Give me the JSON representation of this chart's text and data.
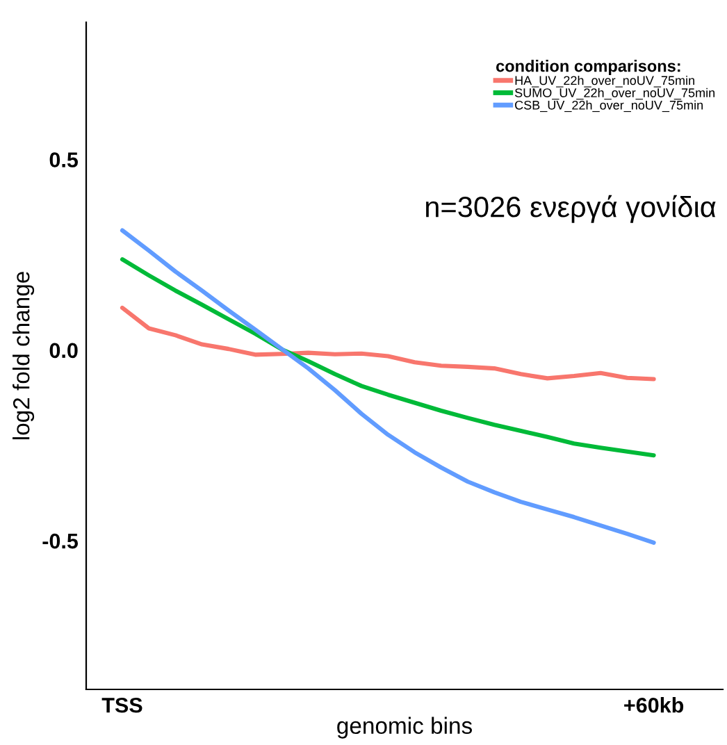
{
  "chart_data": {
    "type": "line",
    "xlabel": "genomic bins",
    "ylabel": "log2 fold change",
    "legend_title": "condition comparisons:",
    "legend": "top right",
    "grid": false,
    "annotations": [
      "n=3026 ενεργά γονίδια"
    ],
    "categories": [
      "TSS",
      null,
      null,
      null,
      null,
      null,
      null,
      null,
      null,
      null,
      null,
      null,
      null,
      null,
      null,
      null,
      null,
      null,
      null,
      null,
      "+60kb"
    ],
    "ylim": [
      -0.89,
      0.86
    ],
    "yticks": [
      {
        "value": 0.5,
        "label": "0.5"
      },
      {
        "value": 0.0,
        "label": "0.0"
      },
      {
        "value": -0.5,
        "label": "-0.5"
      }
    ],
    "series": [
      {
        "name": "HA_UV_22h_over_noUV_75min",
        "color": "#f8766d",
        "values": [
          0.111,
          0.057,
          0.039,
          0.015,
          0.003,
          -0.012,
          -0.01,
          -0.007,
          -0.011,
          -0.009,
          -0.016,
          -0.032,
          -0.041,
          -0.044,
          -0.048,
          -0.063,
          -0.074,
          -0.068,
          -0.06,
          -0.073,
          -0.076
        ]
      },
      {
        "name": "SUMO_UV_22h_over_noUV_75min",
        "color": "#00ba38",
        "values": [
          0.238,
          0.196,
          0.156,
          0.119,
          0.081,
          0.043,
          0.002,
          -0.029,
          -0.063,
          -0.094,
          -0.117,
          -0.138,
          -0.159,
          -0.178,
          -0.196,
          -0.212,
          -0.228,
          -0.245,
          -0.256,
          -0.266,
          -0.276
        ]
      },
      {
        "name": "CSB_UV_22h_over_noUV_75min",
        "color": "#619cff",
        "values": [
          0.314,
          0.261,
          0.206,
          0.156,
          0.104,
          0.054,
          0.003,
          -0.048,
          -0.105,
          -0.167,
          -0.222,
          -0.268,
          -0.308,
          -0.345,
          -0.373,
          -0.398,
          -0.418,
          -0.438,
          -0.46,
          -0.482,
          -0.505
        ]
      }
    ]
  }
}
